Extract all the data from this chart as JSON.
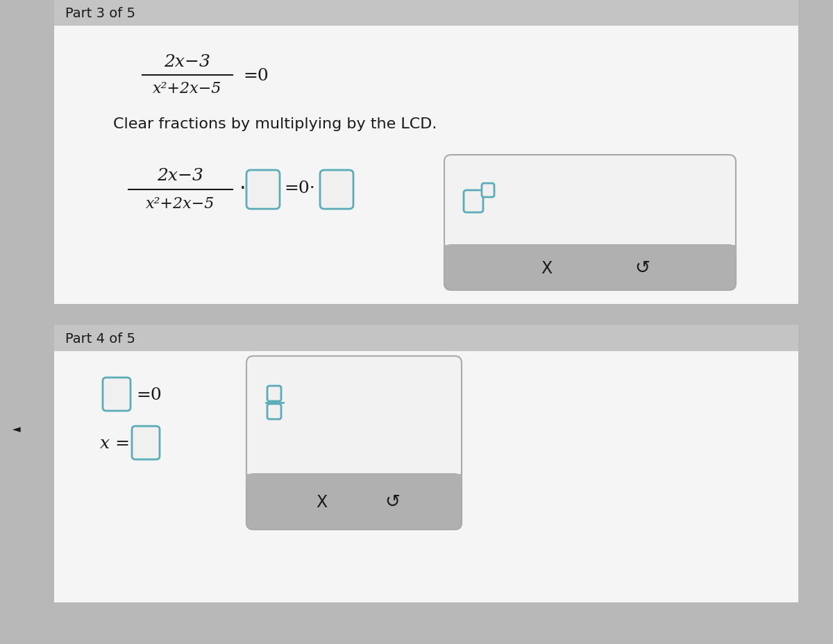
{
  "bg_outer": "#b8b8b8",
  "bg_header": "#c4c4c4",
  "bg_content": "#e6e6e6",
  "bg_white": "#f5f5f5",
  "bg_button_bar": "#b0b0b0",
  "text_color": "#1a1a1a",
  "teal_box": "#5aacb8",
  "part3_header": "Part 3 of 5",
  "part4_header": "Part 4 of 5",
  "instruction_text": "Clear fractions by multiplying by the LCD.",
  "frac_num": "2x−3",
  "frac_den": "x²+2x−5",
  "font_size_header": 14,
  "font_size_text": 15,
  "font_size_math": 18,
  "font_size_part": 14
}
